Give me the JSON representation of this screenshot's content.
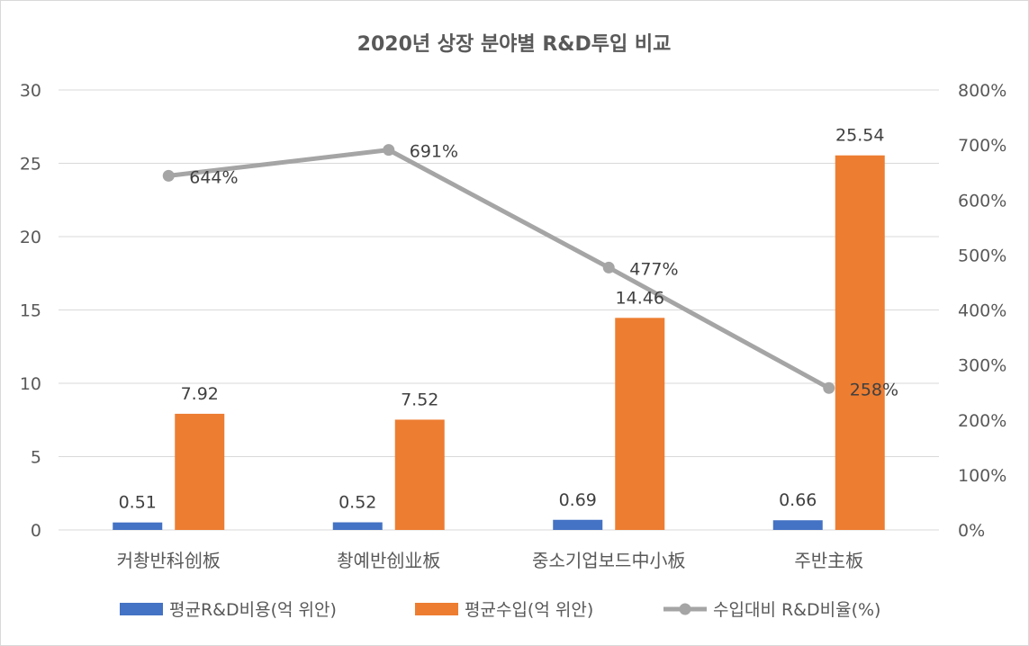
{
  "chart_data": {
    "type": "bar",
    "title": "2020년 상장 분야별 R&D투입 비교",
    "categories": [
      "커촹반科创板",
      "촹예반创业板",
      "중소기업보드中小板",
      "주반主板"
    ],
    "y_left": {
      "ylim": [
        0,
        30
      ],
      "ticks": [
        0,
        5,
        10,
        15,
        20,
        25,
        30
      ]
    },
    "y_right": {
      "ylim": [
        0,
        800
      ],
      "ticks": [
        0,
        100,
        200,
        300,
        400,
        500,
        600,
        700,
        800
      ],
      "unit": "%"
    },
    "series": [
      {
        "name": "평균R&D비용(억 위안)",
        "type": "bar",
        "axis": "left",
        "color": "#4472c4",
        "values": [
          0.51,
          0.52,
          0.69,
          0.66
        ],
        "labels": [
          "0.51",
          "0.52",
          "0.69",
          "0.66"
        ]
      },
      {
        "name": "평균수입(억 위안)",
        "type": "bar",
        "axis": "left",
        "color": "#ed7d31",
        "values": [
          7.92,
          7.52,
          14.46,
          25.54
        ],
        "labels": [
          "7.92",
          "7.52",
          "14.46",
          "25.54"
        ]
      },
      {
        "name": "수입대비 R&D비율(%)",
        "type": "line",
        "axis": "right",
        "color": "#a5a5a5",
        "values": [
          644,
          691,
          477,
          258
        ],
        "labels": [
          "644%",
          "691%",
          "477%",
          "258%"
        ]
      }
    ],
    "grid": true,
    "legend_position": "bottom"
  }
}
